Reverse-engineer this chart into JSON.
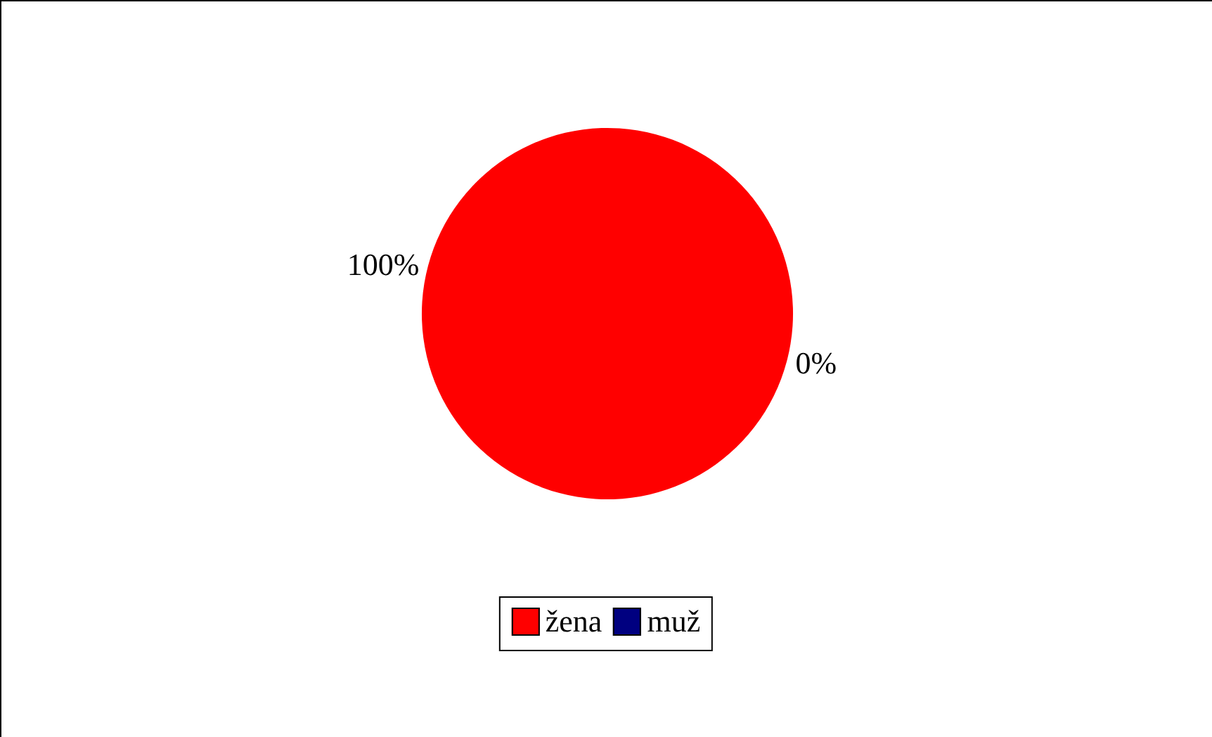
{
  "chart_data": {
    "type": "pie",
    "categories": [
      "žena",
      "muž"
    ],
    "values": [
      100,
      0
    ],
    "colors": [
      "#ff0000",
      "#000080"
    ],
    "value_labels": [
      "100%",
      "0%"
    ],
    "legend": "bottom"
  }
}
